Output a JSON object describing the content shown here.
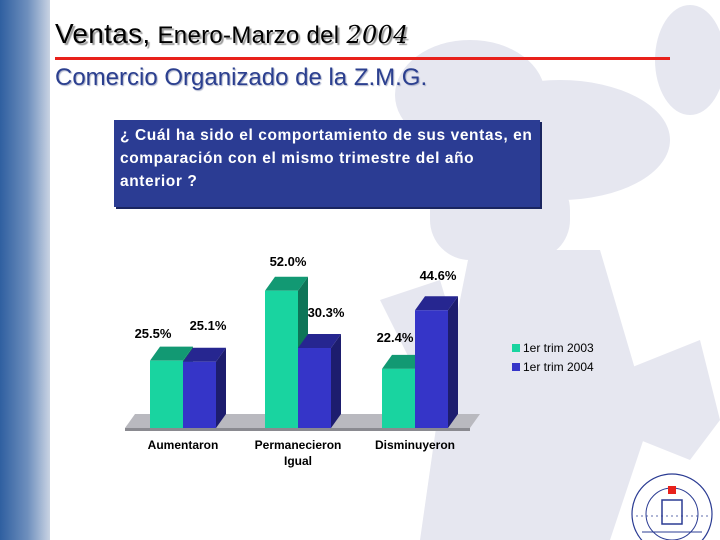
{
  "slide": {
    "title": {
      "part1": "Ventas,",
      "part2": " Enero-Marzo del ",
      "part3": "2004"
    },
    "subtitle": "Comercio Organizado de la Z.M.G.",
    "question": "¿ Cuál ha sido el comportamiento de sus ventas, en comparación con el mismo trimestre del año anterior ?"
  },
  "colors": {
    "accent_red": "#e8211b",
    "title_blue": "#2b3f8f",
    "question_bg": "#2b3c93",
    "series_2003": "#19d4a0",
    "series_2004": "#3535c8"
  },
  "chart_data": {
    "type": "bar",
    "categories": [
      "Aumentaron",
      "Permanecieron\nIgual",
      "Disminuyeron"
    ],
    "series": [
      {
        "name": "1er trim 2003",
        "values": [
          25.5,
          52.0,
          22.4
        ],
        "labels": [
          "25.5%",
          "52.0%",
          "22.4%"
        ]
      },
      {
        "name": "1er trim 2004",
        "values": [
          25.1,
          30.3,
          44.6
        ],
        "labels": [
          "25.1%",
          "30.3%",
          "44.6%"
        ]
      }
    ],
    "title": "",
    "xlabel": "",
    "ylabel": "",
    "ylim": [
      0,
      55
    ],
    "grid": false,
    "legend": "right",
    "style": "3d"
  }
}
